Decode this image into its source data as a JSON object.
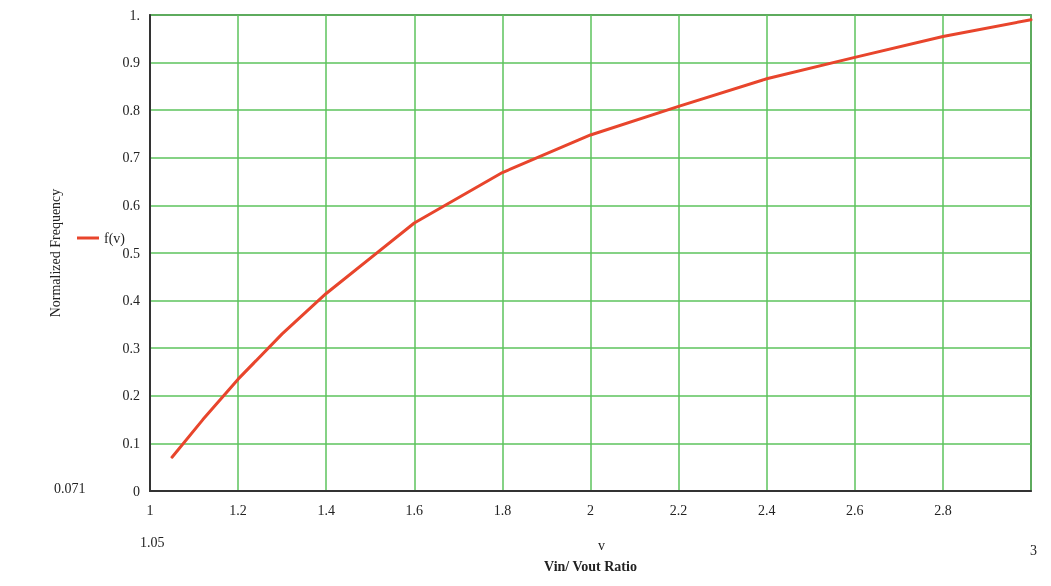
{
  "chart_data": {
    "type": "line",
    "xlabel": "Vin/ Vout Ratio",
    "ylabel": "Normalized Frequency",
    "x": [
      1.05,
      1.12,
      1.2,
      1.3,
      1.4,
      1.6,
      1.8,
      2.0,
      2.2,
      2.4,
      2.6,
      2.8,
      3.0
    ],
    "series": [
      {
        "name": "f(v)",
        "color": "#e8452c",
        "values": [
          0.071,
          0.15,
          0.235,
          0.33,
          0.415,
          0.563,
          0.669,
          0.748,
          0.808,
          0.866,
          0.911,
          0.955,
          0.99
        ]
      }
    ],
    "xlim": [
      1,
      3
    ],
    "xticks": [
      1,
      1.2,
      1.4,
      1.6,
      1.8,
      2,
      2.2,
      2.4,
      2.6,
      2.8
    ],
    "ylim": [
      0,
      1
    ],
    "yticks": [
      0,
      0.1,
      0.2,
      0.3,
      0.4,
      0.5,
      0.6,
      0.7,
      0.8,
      0.9,
      {
        "value": 1,
        "label": "1."
      }
    ],
    "annotations": [
      "1.05",
      "3",
      "0.071",
      "v"
    ],
    "grid": true,
    "legend": "left",
    "marker": "none",
    "line_style": "solid"
  }
}
